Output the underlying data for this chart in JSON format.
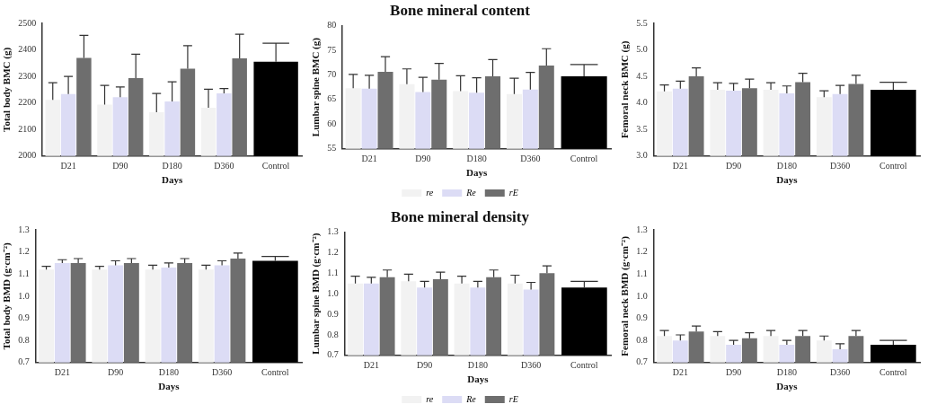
{
  "chart_data": [
    {
      "type": "bar",
      "xlabel": "Days",
      "ylabel": "Total body BMC (g)",
      "categories": [
        "D21",
        "D90",
        "D180",
        "D360",
        "Control"
      ],
      "ylim": [
        2000,
        2500
      ],
      "yticks": [
        2000,
        2100,
        2200,
        2300,
        2400,
        2500
      ],
      "legend": false,
      "series": [
        {
          "color": "#f2f2f2",
          "values": [
            2212,
            2194,
            2165,
            2182,
            null
          ],
          "errors": [
            [
              2212,
              2276
            ],
            [
              2194,
              2266
            ],
            [
              2165,
              2236
            ],
            [
              2182,
              2252
            ],
            null
          ]
        },
        {
          "color": "#dcdcf5",
          "values": [
            2234,
            2222,
            2206,
            2236,
            null
          ],
          "errors": [
            [
              2234,
              2300
            ],
            [
              2222,
              2260
            ],
            [
              2206,
              2280
            ],
            [
              2236,
              2254
            ],
            null
          ]
        },
        {
          "color": "#6e6e6e",
          "values": [
            2370,
            2294,
            2329,
            2368,
            null
          ],
          "errors": [
            [
              2370,
              2455
            ],
            [
              2294,
              2384
            ],
            [
              2329,
              2416
            ],
            [
              2368,
              2459
            ],
            null
          ]
        },
        {
          "color": "#000000",
          "values": [
            null,
            null,
            null,
            null,
            2355
          ],
          "errors": [
            null,
            null,
            null,
            null,
            [
              2355,
              2425
            ]
          ]
        }
      ]
    },
    {
      "type": "bar",
      "title": "Bone mineral content",
      "xlabel": "Days",
      "ylabel": "Lumbar spine BMC (g)",
      "categories": [
        "D21",
        "D90",
        "D180",
        "D360",
        "Control"
      ],
      "ylim": [
        55,
        80
      ],
      "yticks": [
        55,
        60,
        65,
        70,
        75,
        80
      ],
      "legend": "bottom",
      "series": [
        {
          "name": "re",
          "color": "#f2f2f2",
          "values": [
            67.3,
            68.1,
            66.7,
            66.1,
            null
          ],
          "errors": [
            [
              67.3,
              70.1
            ],
            [
              68.1,
              71.2
            ],
            [
              66.7,
              69.8
            ],
            [
              66.1,
              69.3
            ],
            null
          ]
        },
        {
          "name": "Re",
          "color": "#dcdcf5",
          "values": [
            67.2,
            66.5,
            66.4,
            67.0,
            null
          ],
          "errors": [
            [
              67.2,
              69.9
            ],
            [
              66.5,
              69.5
            ],
            [
              66.4,
              69.4
            ],
            [
              67.0,
              70.5
            ],
            null
          ]
        },
        {
          "name": "rE",
          "color": "#6e6e6e",
          "values": [
            70.6,
            69.0,
            69.7,
            71.9,
            null
          ],
          "errors": [
            [
              70.6,
              73.7
            ],
            [
              69.0,
              72.3
            ],
            [
              69.7,
              73.1
            ],
            [
              71.9,
              75.3
            ],
            null
          ]
        },
        {
          "color": "#000000",
          "values": [
            null,
            null,
            null,
            null,
            69.7
          ],
          "errors": [
            null,
            null,
            null,
            null,
            [
              69.7,
              72.1
            ]
          ]
        }
      ]
    },
    {
      "type": "bar",
      "xlabel": "Days",
      "ylabel": "Femoral neck BMC (g)",
      "categories": [
        "D21",
        "D90",
        "D180",
        "D360",
        "Control"
      ],
      "ylim": [
        3,
        5.5
      ],
      "yticks": [
        {
          "value": 3,
          "label": "3.0"
        },
        3.5,
        {
          "value": 4,
          "label": "4.0"
        },
        4.5,
        {
          "value": 5,
          "label": "5.0"
        },
        5.5
      ],
      "legend": false,
      "series": [
        {
          "color": "#f2f2f2",
          "values": [
            4.22,
            4.25,
            4.25,
            4.11,
            null
          ],
          "errors": [
            [
              4.22,
              4.34
            ],
            [
              4.25,
              4.38
            ],
            [
              4.25,
              4.38
            ],
            [
              4.11,
              4.23
            ],
            null
          ]
        },
        {
          "color": "#dcdcf5",
          "values": [
            4.27,
            4.23,
            4.18,
            4.17,
            null
          ],
          "errors": [
            [
              4.27,
              4.41
            ],
            [
              4.23,
              4.37
            ],
            [
              4.18,
              4.32
            ],
            [
              4.17,
              4.33
            ],
            null
          ]
        },
        {
          "color": "#6e6e6e",
          "values": [
            4.5,
            4.28,
            4.39,
            4.36,
            null
          ],
          "errors": [
            [
              4.5,
              4.66
            ],
            [
              4.28,
              4.45
            ],
            [
              4.39,
              4.56
            ],
            [
              4.36,
              4.52
            ],
            null
          ]
        },
        {
          "color": "#000000",
          "values": [
            null,
            null,
            null,
            null,
            4.25
          ],
          "errors": [
            null,
            null,
            null,
            null,
            [
              4.25,
              4.39
            ]
          ]
        }
      ]
    },
    {
      "type": "bar",
      "xlabel": "Days",
      "ylabel": "Total body BMD (g·cm⁻²)",
      "categories": [
        "D21",
        "D90",
        "D180",
        "D360",
        "Control"
      ],
      "ylim": [
        0.7,
        1.3
      ],
      "yticks": [
        0.7,
        0.8,
        0.9,
        {
          "value": 1,
          "label": "1.0"
        },
        1.1,
        1.2,
        1.3
      ],
      "legend": false,
      "series": [
        {
          "color": "#f2f2f2",
          "values": [
            1.12,
            1.12,
            1.12,
            1.12,
            null
          ],
          "errors": [
            [
              1.12,
              1.135
            ],
            [
              1.12,
              1.135
            ],
            [
              1.12,
              1.14
            ],
            [
              1.12,
              1.14
            ],
            null
          ]
        },
        {
          "color": "#dcdcf5",
          "values": [
            1.15,
            1.14,
            1.13,
            1.14,
            null
          ],
          "errors": [
            [
              1.15,
              1.165
            ],
            [
              1.14,
              1.16
            ],
            [
              1.13,
              1.15
            ],
            [
              1.14,
              1.16
            ],
            null
          ]
        },
        {
          "color": "#6e6e6e",
          "values": [
            1.15,
            1.15,
            1.15,
            1.17,
            null
          ],
          "errors": [
            [
              1.15,
              1.17
            ],
            [
              1.15,
              1.17
            ],
            [
              1.15,
              1.17
            ],
            [
              1.17,
              1.195
            ],
            null
          ]
        },
        {
          "color": "#000000",
          "values": [
            null,
            null,
            null,
            null,
            1.16
          ],
          "errors": [
            null,
            null,
            null,
            null,
            [
              1.16,
              1.18
            ]
          ]
        }
      ]
    },
    {
      "type": "bar",
      "title": "Bone mineral density",
      "xlabel": "Days",
      "ylabel": "Lumbar spine BMD (g·cm⁻²)",
      "categories": [
        "D21",
        "D90",
        "D180",
        "D360",
        "Control"
      ],
      "ylim": [
        0.7,
        1.3
      ],
      "yticks": [
        0.7,
        0.8,
        0.9,
        {
          "value": 1,
          "label": "1.0"
        },
        1.1,
        1.2,
        1.3
      ],
      "legend": "bottom",
      "series": [
        {
          "name": "re",
          "color": "#f2f2f2",
          "values": [
            1.05,
            1.06,
            1.05,
            1.05,
            null
          ],
          "errors": [
            [
              1.05,
              1.085
            ],
            [
              1.06,
              1.095
            ],
            [
              1.05,
              1.085
            ],
            [
              1.05,
              1.09
            ],
            null
          ]
        },
        {
          "name": "Re",
          "color": "#dcdcf5",
          "values": [
            1.05,
            1.03,
            1.03,
            1.02,
            null
          ],
          "errors": [
            [
              1.05,
              1.08
            ],
            [
              1.03,
              1.06
            ],
            [
              1.03,
              1.06
            ],
            [
              1.02,
              1.055
            ],
            null
          ]
        },
        {
          "name": "rE",
          "color": "#6e6e6e",
          "values": [
            1.08,
            1.07,
            1.08,
            1.1,
            null
          ],
          "errors": [
            [
              1.08,
              1.115
            ],
            [
              1.07,
              1.105
            ],
            [
              1.08,
              1.115
            ],
            [
              1.1,
              1.135
            ],
            null
          ]
        },
        {
          "color": "#000000",
          "values": [
            null,
            null,
            null,
            null,
            1.03
          ],
          "errors": [
            null,
            null,
            null,
            null,
            [
              1.03,
              1.06
            ]
          ]
        }
      ]
    },
    {
      "type": "bar",
      "xlabel": "Days",
      "ylabel": "Femoral neck BMD (g·cm⁻²)",
      "categories": [
        "D21",
        "D90",
        "D180",
        "D360",
        "Control"
      ],
      "ylim": [
        0.7,
        1.3
      ],
      "yticks": [
        0.7,
        0.8,
        0.9,
        {
          "value": 1,
          "label": "1.0"
        },
        1.1,
        1.2,
        1.3
      ],
      "legend": false,
      "series": [
        {
          "color": "#f2f2f2",
          "values": [
            0.82,
            0.82,
            0.82,
            0.8,
            null
          ],
          "errors": [
            [
              0.82,
              0.845
            ],
            [
              0.82,
              0.84
            ],
            [
              0.82,
              0.845
            ],
            [
              0.8,
              0.82
            ],
            null
          ]
        },
        {
          "color": "#dcdcf5",
          "values": [
            0.8,
            0.78,
            0.78,
            0.76,
            null
          ],
          "errors": [
            [
              0.8,
              0.825
            ],
            [
              0.78,
              0.8
            ],
            [
              0.78,
              0.8
            ],
            [
              0.76,
              0.785
            ],
            null
          ]
        },
        {
          "color": "#6e6e6e",
          "values": [
            0.84,
            0.81,
            0.82,
            0.82,
            null
          ],
          "errors": [
            [
              0.84,
              0.865
            ],
            [
              0.81,
              0.835
            ],
            [
              0.82,
              0.845
            ],
            [
              0.82,
              0.845
            ],
            null
          ]
        },
        {
          "color": "#000000",
          "values": [
            null,
            null,
            null,
            null,
            0.78
          ],
          "errors": [
            null,
            null,
            null,
            null,
            [
              0.78,
              0.8
            ]
          ]
        }
      ]
    }
  ]
}
